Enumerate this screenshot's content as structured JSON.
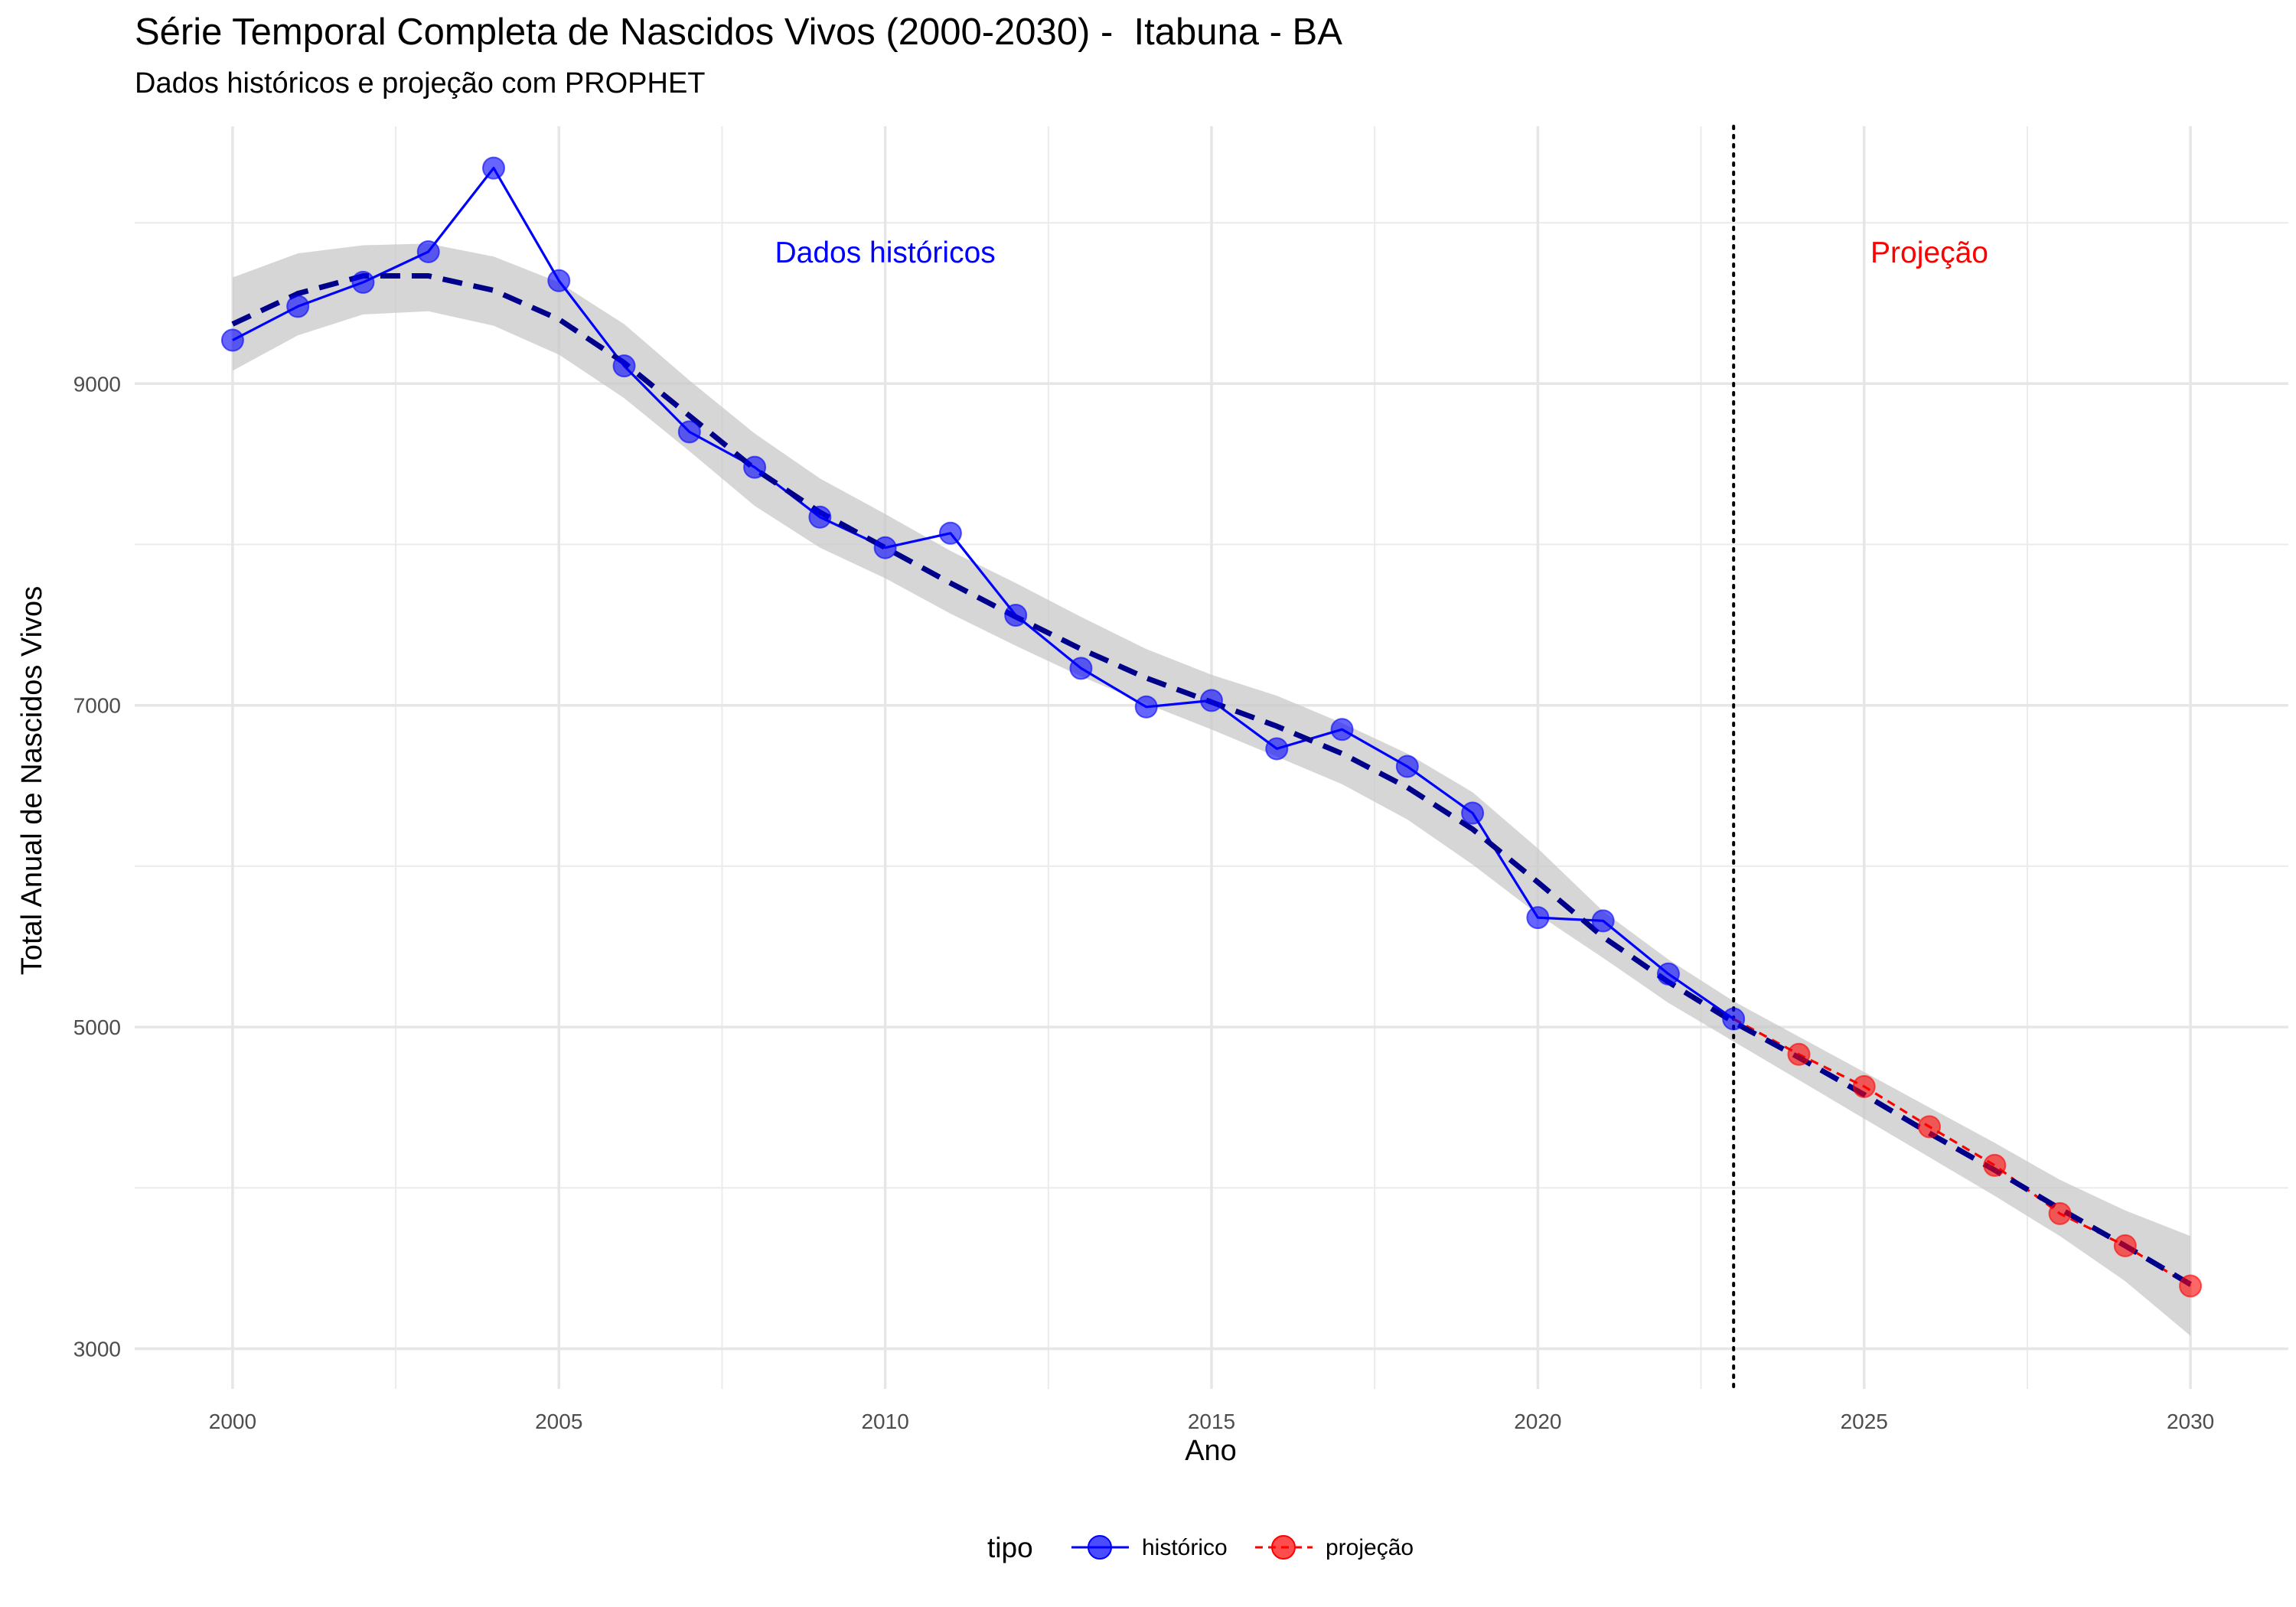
{
  "chart_data": {
    "type": "line",
    "title": "Série Temporal Completa de Nascidos Vivos (2000-2030) -  Itabuna - BA",
    "subtitle": "Dados históricos e projeção com PROPHET",
    "xlabel": "Ano",
    "ylabel": "Total Anual de Nascidos Vivos",
    "xlim": [
      1998.5,
      2031.5
    ],
    "ylim": [
      2750,
      10600
    ],
    "x_ticks": [
      2000,
      2005,
      2010,
      2015,
      2020,
      2025,
      2030
    ],
    "x_tick_labels": [
      "2000",
      "2005",
      "2010",
      "2015",
      "2020",
      "2025",
      "2030"
    ],
    "y_ticks": [
      3000,
      5000,
      7000,
      9000
    ],
    "y_tick_labels": [
      "3000",
      "5000",
      "7000",
      "9000"
    ],
    "grid": true,
    "legend": {
      "title": "tipo",
      "position": "bottom",
      "entries": [
        {
          "label": "histórico",
          "color": "#0000ff"
        },
        {
          "label": "projeção",
          "color": "#ff0000"
        }
      ]
    },
    "cutoff_year": 2023,
    "annotations": [
      {
        "text": "Dados históricos",
        "x": 2010,
        "y": 9820,
        "color": "#0000ff"
      },
      {
        "text": "Projeção",
        "x": 2026,
        "y": 9820,
        "color": "#ff0000"
      }
    ],
    "series": [
      {
        "name": "histórico",
        "color": "#0000ff",
        "x": [
          2000,
          2001,
          2002,
          2003,
          2004,
          2005,
          2006,
          2007,
          2008,
          2009,
          2010,
          2011,
          2012,
          2013,
          2014,
          2015,
          2016,
          2017,
          2018,
          2019,
          2020,
          2021,
          2022,
          2023
        ],
        "y": [
          9270,
          9480,
          9630,
          9820,
          10340,
          9640,
          9110,
          8700,
          8480,
          8170,
          7980,
          8070,
          7560,
          7230,
          6990,
          7030,
          6730,
          6850,
          6620,
          6330,
          5680,
          5660,
          5330,
          5050
        ]
      },
      {
        "name": "projeção",
        "color": "#ff0000",
        "x": [
          2023,
          2024,
          2025,
          2026,
          2027,
          2028,
          2029,
          2030
        ],
        "y": [
          5050,
          4830,
          4630,
          4380,
          4140,
          3840,
          3640,
          3390
        ]
      }
    ],
    "trend": {
      "color": "#00008b",
      "x": [
        2000,
        2001,
        2002,
        2003,
        2004,
        2005,
        2006,
        2007,
        2008,
        2009,
        2010,
        2011,
        2012,
        2013,
        2014,
        2015,
        2016,
        2017,
        2018,
        2019,
        2020,
        2021,
        2022,
        2023,
        2024,
        2025,
        2026,
        2027,
        2028,
        2029,
        2030
      ],
      "y": [
        9370,
        9560,
        9670,
        9670,
        9580,
        9400,
        9130,
        8800,
        8470,
        8200,
        7980,
        7760,
        7550,
        7350,
        7170,
        7020,
        6870,
        6700,
        6490,
        6230,
        5900,
        5560,
        5280,
        5030,
        4810,
        4580,
        4340,
        4110,
        3870,
        3640,
        3400
      ],
      "lower": [
        9080,
        9300,
        9430,
        9450,
        9360,
        9180,
        8910,
        8580,
        8240,
        7980,
        7790,
        7570,
        7370,
        7180,
        7010,
        6850,
        6680,
        6510,
        6290,
        6010,
        5700,
        5430,
        5150,
        4910,
        4670,
        4430,
        4190,
        3950,
        3700,
        3420,
        3080
      ],
      "upper": [
        9660,
        9810,
        9860,
        9870,
        9790,
        9630,
        9370,
        9020,
        8690,
        8410,
        8190,
        7960,
        7760,
        7550,
        7350,
        7190,
        7060,
        6890,
        6700,
        6460,
        6110,
        5720,
        5420,
        5160,
        4940,
        4720,
        4500,
        4280,
        4050,
        3860,
        3700
      ]
    }
  }
}
